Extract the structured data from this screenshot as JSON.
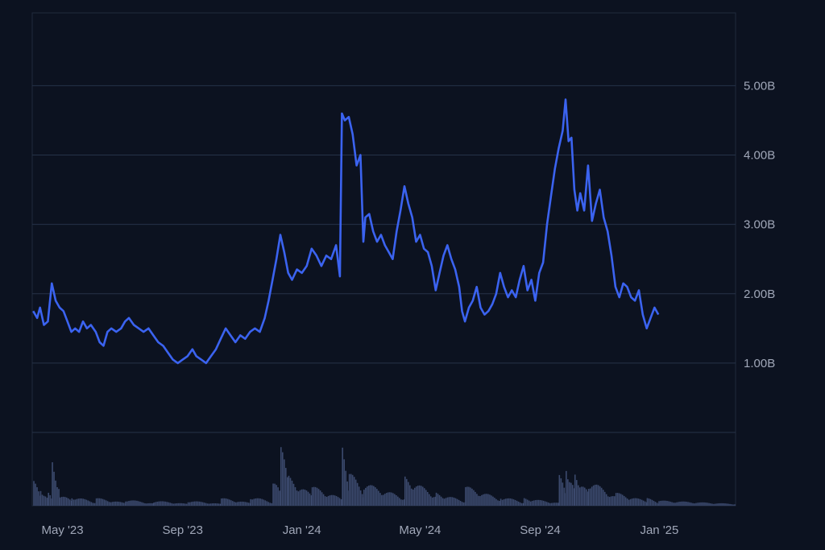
{
  "chart_data": {
    "type": "line",
    "series": [
      {
        "name": "",
        "color": "#3b63f0"
      }
    ],
    "y_ticks": [
      "1.00B",
      "2.00B",
      "3.00B",
      "4.00B",
      "5.00B"
    ],
    "x_ticks": [
      "May '23",
      "Sep '23",
      "Jan '24",
      "May '24",
      "Sep '24",
      "Jan '25"
    ],
    "ylim": [
      0,
      6.05
    ],
    "volume_color": "#3c4a6e",
    "grid": true,
    "points": [
      [
        "2023-04-01",
        1.75
      ],
      [
        "2023-04-05",
        1.65
      ],
      [
        "2023-04-08",
        1.8
      ],
      [
        "2023-04-12",
        1.55
      ],
      [
        "2023-04-16",
        1.6
      ],
      [
        "2023-04-20",
        2.15
      ],
      [
        "2023-04-24",
        1.9
      ],
      [
        "2023-04-28",
        1.8
      ],
      [
        "2023-05-02",
        1.75
      ],
      [
        "2023-05-06",
        1.6
      ],
      [
        "2023-05-10",
        1.45
      ],
      [
        "2023-05-14",
        1.5
      ],
      [
        "2023-05-18",
        1.45
      ],
      [
        "2023-05-22",
        1.6
      ],
      [
        "2023-05-26",
        1.5
      ],
      [
        "2023-05-30",
        1.55
      ],
      [
        "2023-06-04",
        1.45
      ],
      [
        "2023-06-08",
        1.3
      ],
      [
        "2023-06-12",
        1.25
      ],
      [
        "2023-06-16",
        1.45
      ],
      [
        "2023-06-20",
        1.5
      ],
      [
        "2023-06-25",
        1.45
      ],
      [
        "2023-06-30",
        1.5
      ],
      [
        "2023-07-04",
        1.6
      ],
      [
        "2023-07-08",
        1.65
      ],
      [
        "2023-07-13",
        1.55
      ],
      [
        "2023-07-18",
        1.5
      ],
      [
        "2023-07-23",
        1.45
      ],
      [
        "2023-07-28",
        1.5
      ],
      [
        "2023-08-02",
        1.4
      ],
      [
        "2023-08-07",
        1.3
      ],
      [
        "2023-08-12",
        1.25
      ],
      [
        "2023-08-17",
        1.15
      ],
      [
        "2023-08-22",
        1.05
      ],
      [
        "2023-08-27",
        1.0
      ],
      [
        "2023-09-01",
        1.05
      ],
      [
        "2023-09-06",
        1.1
      ],
      [
        "2023-09-11",
        1.2
      ],
      [
        "2023-09-15",
        1.1
      ],
      [
        "2023-09-20",
        1.05
      ],
      [
        "2023-09-25",
        1.0
      ],
      [
        "2023-09-30",
        1.1
      ],
      [
        "2023-10-05",
        1.2
      ],
      [
        "2023-10-10",
        1.35
      ],
      [
        "2023-10-15",
        1.5
      ],
      [
        "2023-10-20",
        1.4
      ],
      [
        "2023-10-25",
        1.3
      ],
      [
        "2023-10-30",
        1.4
      ],
      [
        "2023-11-04",
        1.35
      ],
      [
        "2023-11-09",
        1.45
      ],
      [
        "2023-11-14",
        1.5
      ],
      [
        "2023-11-19",
        1.45
      ],
      [
        "2023-11-24",
        1.65
      ],
      [
        "2023-11-28",
        1.9
      ],
      [
        "2023-12-02",
        2.2
      ],
      [
        "2023-12-06",
        2.5
      ],
      [
        "2023-12-10",
        2.85
      ],
      [
        "2023-12-14",
        2.6
      ],
      [
        "2023-12-18",
        2.3
      ],
      [
        "2023-12-22",
        2.2
      ],
      [
        "2023-12-27",
        2.35
      ],
      [
        "2024-01-01",
        2.3
      ],
      [
        "2024-01-06",
        2.4
      ],
      [
        "2024-01-11",
        2.65
      ],
      [
        "2024-01-16",
        2.55
      ],
      [
        "2024-01-21",
        2.4
      ],
      [
        "2024-01-26",
        2.55
      ],
      [
        "2024-01-31",
        2.5
      ],
      [
        "2024-02-05",
        2.7
      ],
      [
        "2024-02-09",
        2.25
      ],
      [
        "2024-02-11",
        4.6
      ],
      [
        "2024-02-14",
        4.5
      ],
      [
        "2024-02-18",
        4.55
      ],
      [
        "2024-02-22",
        4.3
      ],
      [
        "2024-02-26",
        3.85
      ],
      [
        "2024-03-01",
        4.0
      ],
      [
        "2024-03-04",
        2.75
      ],
      [
        "2024-03-06",
        3.1
      ],
      [
        "2024-03-10",
        3.15
      ],
      [
        "2024-03-14",
        2.9
      ],
      [
        "2024-03-18",
        2.75
      ],
      [
        "2024-03-22",
        2.85
      ],
      [
        "2024-03-26",
        2.7
      ],
      [
        "2024-03-30",
        2.6
      ],
      [
        "2024-04-03",
        2.5
      ],
      [
        "2024-04-07",
        2.9
      ],
      [
        "2024-04-11",
        3.2
      ],
      [
        "2024-04-15",
        3.55
      ],
      [
        "2024-04-19",
        3.3
      ],
      [
        "2024-04-23",
        3.1
      ],
      [
        "2024-04-27",
        2.75
      ],
      [
        "2024-05-01",
        2.85
      ],
      [
        "2024-05-05",
        2.65
      ],
      [
        "2024-05-09",
        2.6
      ],
      [
        "2024-05-13",
        2.4
      ],
      [
        "2024-05-17",
        2.05
      ],
      [
        "2024-05-21",
        2.3
      ],
      [
        "2024-05-25",
        2.55
      ],
      [
        "2024-05-29",
        2.7
      ],
      [
        "2024-06-02",
        2.5
      ],
      [
        "2024-06-06",
        2.35
      ],
      [
        "2024-06-10",
        2.1
      ],
      [
        "2024-06-13",
        1.75
      ],
      [
        "2024-06-16",
        1.6
      ],
      [
        "2024-06-20",
        1.8
      ],
      [
        "2024-06-24",
        1.9
      ],
      [
        "2024-06-28",
        2.1
      ],
      [
        "2024-07-02",
        1.8
      ],
      [
        "2024-07-06",
        1.7
      ],
      [
        "2024-07-10",
        1.75
      ],
      [
        "2024-07-14",
        1.85
      ],
      [
        "2024-07-18",
        2.0
      ],
      [
        "2024-07-22",
        2.3
      ],
      [
        "2024-07-26",
        2.1
      ],
      [
        "2024-07-30",
        1.95
      ],
      [
        "2024-08-03",
        2.05
      ],
      [
        "2024-08-07",
        1.95
      ],
      [
        "2024-08-11",
        2.2
      ],
      [
        "2024-08-15",
        2.4
      ],
      [
        "2024-08-19",
        2.05
      ],
      [
        "2024-08-23",
        2.2
      ],
      [
        "2024-08-27",
        1.9
      ],
      [
        "2024-08-31",
        2.3
      ],
      [
        "2024-09-04",
        2.45
      ],
      [
        "2024-09-08",
        3.0
      ],
      [
        "2024-09-12",
        3.4
      ],
      [
        "2024-09-16",
        3.8
      ],
      [
        "2024-09-20",
        4.1
      ],
      [
        "2024-09-24",
        4.35
      ],
      [
        "2024-09-27",
        4.8
      ],
      [
        "2024-09-30",
        4.2
      ],
      [
        "2024-10-03",
        4.25
      ],
      [
        "2024-10-06",
        3.5
      ],
      [
        "2024-10-09",
        3.2
      ],
      [
        "2024-10-12",
        3.45
      ],
      [
        "2024-10-16",
        3.2
      ],
      [
        "2024-10-20",
        3.85
      ],
      [
        "2024-10-24",
        3.05
      ],
      [
        "2024-10-28",
        3.3
      ],
      [
        "2024-11-01",
        3.5
      ],
      [
        "2024-11-05",
        3.1
      ],
      [
        "2024-11-09",
        2.9
      ],
      [
        "2024-11-13",
        2.55
      ],
      [
        "2024-11-17",
        2.1
      ],
      [
        "2024-11-21",
        1.95
      ],
      [
        "2024-11-25",
        2.15
      ],
      [
        "2024-11-29",
        2.1
      ],
      [
        "2024-12-03",
        1.95
      ],
      [
        "2024-12-07",
        1.9
      ],
      [
        "2024-12-11",
        2.05
      ],
      [
        "2024-12-15",
        1.7
      ],
      [
        "2024-12-19",
        1.5
      ],
      [
        "2024-12-23",
        1.65
      ],
      [
        "2024-12-27",
        1.8
      ],
      [
        "2024-12-31",
        1.7
      ]
    ],
    "volume": [
      [
        "2023-04-01",
        0.4
      ],
      [
        "2023-04-08",
        0.3
      ],
      [
        "2023-04-16",
        0.25
      ],
      [
        "2023-04-20",
        0.75
      ],
      [
        "2023-04-28",
        0.2
      ],
      [
        "2023-05-10",
        0.15
      ],
      [
        "2023-06-04",
        0.12
      ],
      [
        "2023-07-04",
        0.1
      ],
      [
        "2023-08-02",
        0.08
      ],
      [
        "2023-09-06",
        0.08
      ],
      [
        "2023-10-10",
        0.12
      ],
      [
        "2023-11-09",
        0.15
      ],
      [
        "2023-12-02",
        0.5
      ],
      [
        "2023-12-10",
        0.95
      ],
      [
        "2023-12-18",
        0.45
      ],
      [
        "2024-01-11",
        0.3
      ],
      [
        "2024-02-11",
        0.9
      ],
      [
        "2024-02-18",
        0.55
      ],
      [
        "2024-03-04",
        0.35
      ],
      [
        "2024-04-15",
        0.45
      ],
      [
        "2024-05-17",
        0.2
      ],
      [
        "2024-06-16",
        0.3
      ],
      [
        "2024-07-22",
        0.15
      ],
      [
        "2024-08-15",
        0.12
      ],
      [
        "2024-09-20",
        0.5
      ],
      [
        "2024-09-27",
        0.7
      ],
      [
        "2024-10-06",
        0.55
      ],
      [
        "2024-10-20",
        0.4
      ],
      [
        "2024-11-17",
        0.2
      ],
      [
        "2024-12-19",
        0.12
      ],
      [
        "2024-12-31",
        0.08
      ]
    ]
  }
}
